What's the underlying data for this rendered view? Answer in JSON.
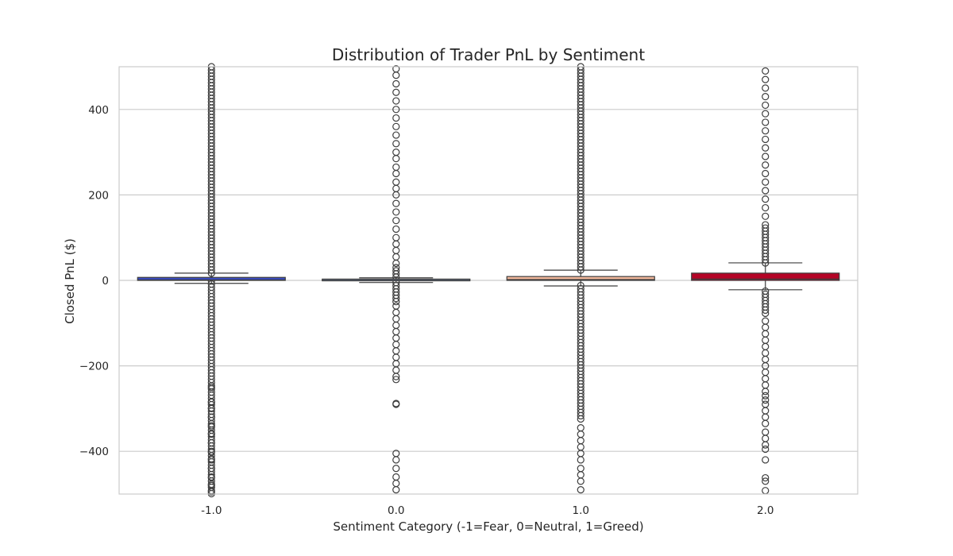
{
  "chart_data": {
    "type": "box",
    "title": "Distribution of Trader PnL by Sentiment",
    "xlabel": "Sentiment Category (-1=Fear, 0=Neutral, 1=Greed)",
    "ylabel": "Closed PnL ($)",
    "ylim": [
      -500,
      500
    ],
    "yticks": [
      -400,
      -200,
      0,
      200,
      400
    ],
    "ytick_labels": [
      "−400",
      "−200",
      "0",
      "200",
      "400"
    ],
    "grid": "horizontal",
    "categories": [
      "-1.0",
      "0.0",
      "1.0",
      "2.0"
    ],
    "boxes": [
      {
        "category": "-1.0",
        "color": "#3b4cc0",
        "q1": 0,
        "median": 1,
        "q3": 7,
        "whisker_low": -7,
        "whisker_high": 17,
        "outliers_high_range": [
          12,
          500
        ],
        "outliers_low_range": [
          -500,
          -1
        ],
        "outliers_sparse": [
          -250,
          -285,
          -300,
          -320,
          -340,
          -360,
          -380,
          -400,
          -420,
          -440,
          -460,
          -480,
          -495
        ]
      },
      {
        "category": "0.0",
        "color": "#8da0cb",
        "q1": -1,
        "median": 0,
        "q3": 3,
        "whisker_low": -5,
        "whisker_high": 6,
        "outliers_high_range": [
          6,
          30
        ],
        "outliers_low_range": [
          -50,
          -5
        ],
        "outliers_sparse": [
          40,
          55,
          70,
          85,
          100,
          120,
          140,
          160,
          180,
          200,
          215,
          230,
          250,
          265,
          285,
          300,
          320,
          340,
          360,
          380,
          400,
          420,
          440,
          460,
          480,
          495,
          -60,
          -75,
          -90,
          -105,
          -120,
          -135,
          -150,
          -165,
          -180,
          -195,
          -210,
          -225,
          -232,
          -288,
          -290,
          -405,
          -420,
          -440,
          -460,
          -475,
          -490
        ]
      },
      {
        "category": "1.0",
        "color": "#f0b79a",
        "q1": 0,
        "median": 2,
        "q3": 9,
        "whisker_low": -13,
        "whisker_high": 24,
        "outliers_high_range": [
          22,
          500
        ],
        "outliers_low_range": [
          -330,
          -12
        ],
        "outliers_sparse": [
          -345,
          -360,
          -375,
          -390,
          -405,
          -420,
          -440,
          -455,
          -470,
          -490
        ]
      },
      {
        "category": "2.0",
        "color": "#b40426",
        "q1": 0,
        "median": 3,
        "q3": 17,
        "whisker_low": -22,
        "whisker_high": 41,
        "outliers_high_range": [
          34,
          130
        ],
        "outliers_low_range": [
          -80,
          -25
        ],
        "outliers_sparse": [
          150,
          170,
          190,
          210,
          230,
          250,
          270,
          290,
          310,
          330,
          350,
          370,
          390,
          410,
          430,
          450,
          470,
          490,
          -95,
          -110,
          -125,
          -140,
          -155,
          -170,
          -185,
          -200,
          -215,
          -230,
          -245,
          -260,
          -270,
          -280,
          -290,
          -305,
          -320,
          -335,
          -355,
          -370,
          -385,
          -395,
          -420,
          -462,
          -470,
          -492
        ]
      }
    ]
  }
}
